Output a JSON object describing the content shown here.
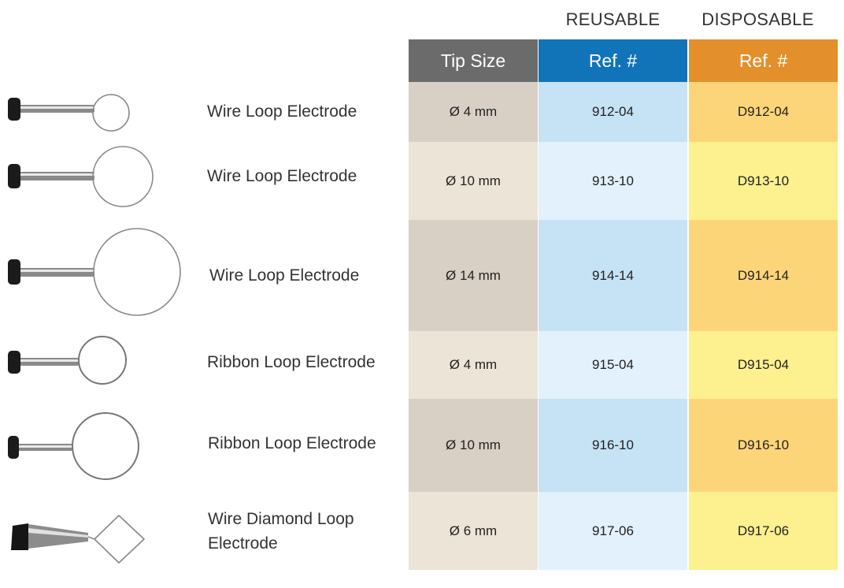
{
  "headers": {
    "reusable_group": "REUSABLE",
    "disposable_group": "DISPOSABLE",
    "tip_size": "Tip Size",
    "reusable_ref": "Ref. #",
    "disposable_ref": "Ref. #"
  },
  "colors": {
    "tip_header": "#6b6b6b",
    "reusable_header": "#1173b8",
    "disposable_header": "#e38f2b",
    "tip_dark": "#d8d0c4",
    "tip_light": "#ece4d6",
    "reusable_dark": "#c6e2f5",
    "reusable_light": "#e2f1fb",
    "disposable_dark": "#fdd579",
    "disposable_light": "#fdf08f"
  },
  "rows": [
    {
      "name": "Wire Loop Electrode",
      "tip_size": "Ø 4 mm",
      "reusable_ref": "912-04",
      "disposable_ref": "D912-04",
      "icon": "wire-loop-4mm-icon"
    },
    {
      "name": "Wire Loop Electrode",
      "tip_size": "Ø 10 mm",
      "reusable_ref": "913-10",
      "disposable_ref": "D913-10",
      "icon": "wire-loop-10mm-icon"
    },
    {
      "name": "Wire Loop Electrode",
      "tip_size": "Ø 14 mm",
      "reusable_ref": "914-14",
      "disposable_ref": "D914-14",
      "icon": "wire-loop-14mm-icon"
    },
    {
      "name": "Ribbon Loop Electrode",
      "tip_size": "Ø 4 mm",
      "reusable_ref": "915-04",
      "disposable_ref": "D915-04",
      "icon": "ribbon-loop-4mm-icon"
    },
    {
      "name": "Ribbon Loop Electrode",
      "tip_size": "Ø 10 mm",
      "reusable_ref": "916-10",
      "disposable_ref": "D916-10",
      "icon": "ribbon-loop-10mm-icon"
    },
    {
      "name": "Wire Diamond Loop Electrode",
      "tip_size": "Ø 6 mm",
      "reusable_ref": "917-06",
      "disposable_ref": "D917-06",
      "icon": "wire-diamond-loop-icon"
    }
  ]
}
